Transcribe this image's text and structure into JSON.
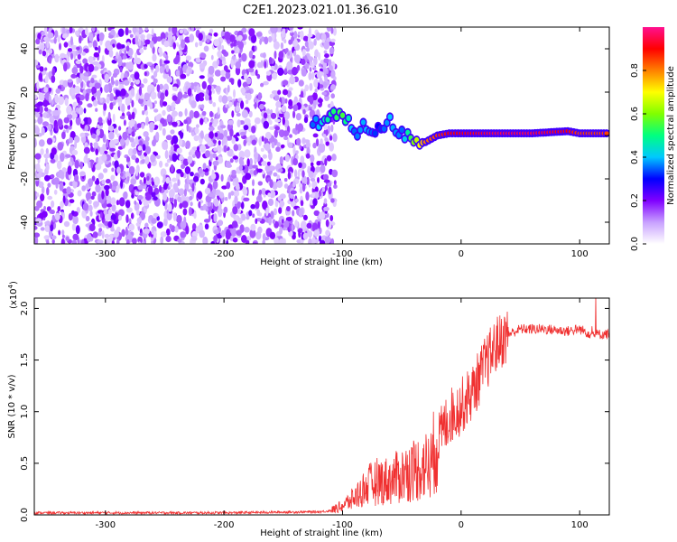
{
  "title": "C2E1.2023.021.01.36.G10",
  "chart_data": [
    {
      "type": "heatmap",
      "xlabel": "Height of straight line (km)",
      "ylabel": "Frequency (Hz)",
      "xlim": [
        -360,
        125
      ],
      "ylim": [
        -50,
        50
      ],
      "xticks": [
        -300,
        -200,
        -100,
        0,
        100
      ],
      "yticks": [
        -40,
        -20,
        0,
        20,
        40
      ],
      "colorbar": {
        "label": "Normalized spectral amplitude",
        "range": [
          0.0,
          1.0
        ],
        "ticks": [
          "0.0",
          "0.2",
          "0.4",
          "0.6",
          "0.8"
        ],
        "colors": [
          "#ffffff",
          "#c8a0ff",
          "#8000ff",
          "#0000ff",
          "#00c8ff",
          "#00ff80",
          "#80ff00",
          "#ffff00",
          "#ff8000",
          "#ff0000",
          "#ff1090"
        ]
      },
      "noise_region_x": [
        -360,
        -110
      ],
      "ridge": [
        {
          "x": -125,
          "y": 6,
          "amp": 0.35
        },
        {
          "x": -115,
          "y": 7,
          "amp": 0.45
        },
        {
          "x": -110,
          "y": 9,
          "amp": 0.5
        },
        {
          "x": -100,
          "y": 8,
          "amp": 0.55
        },
        {
          "x": -95,
          "y": 5,
          "amp": 0.45
        },
        {
          "x": -90,
          "y": 2,
          "amp": 0.35
        },
        {
          "x": -80,
          "y": 4,
          "amp": 0.4
        },
        {
          "x": -70,
          "y": 2,
          "amp": 0.3
        },
        {
          "x": -60,
          "y": 6,
          "amp": 0.4
        },
        {
          "x": -50,
          "y": 1,
          "amp": 0.35
        },
        {
          "x": -40,
          "y": -2,
          "amp": 0.6
        },
        {
          "x": -30,
          "y": -3,
          "amp": 0.8
        },
        {
          "x": -20,
          "y": 0,
          "amp": 0.85
        },
        {
          "x": -10,
          "y": 1,
          "amp": 0.9
        },
        {
          "x": 0,
          "y": 1,
          "amp": 0.9
        },
        {
          "x": 30,
          "y": 1,
          "amp": 0.95
        },
        {
          "x": 60,
          "y": 1,
          "amp": 0.95
        },
        {
          "x": 90,
          "y": 2,
          "amp": 0.9
        },
        {
          "x": 100,
          "y": 1,
          "amp": 0.85
        },
        {
          "x": 125,
          "y": 1,
          "amp": 0.85
        }
      ]
    },
    {
      "type": "line",
      "xlabel": "Height of straight line (km)",
      "ylabel": "SNR (10 * v/v)",
      "multiplier": "(x10",
      "multiplier_exp": "4",
      "multiplier_close": ")",
      "xlim": [
        -360,
        125
      ],
      "ylim": [
        0,
        2.1
      ],
      "xticks": [
        -300,
        -200,
        -100,
        0,
        100
      ],
      "yticks": [
        "0.0",
        "0.5",
        "1.0",
        "1.5",
        "2.0"
      ],
      "color": "#f03030",
      "series": [
        {
          "x": -360,
          "y": 0.02
        },
        {
          "x": -200,
          "y": 0.02
        },
        {
          "x": -120,
          "y": 0.03
        },
        {
          "x": -110,
          "y": 0.04
        },
        {
          "x": -100,
          "y": 0.08
        },
        {
          "x": -90,
          "y": 0.15
        },
        {
          "x": -80,
          "y": 0.25
        },
        {
          "x": -70,
          "y": 0.3
        },
        {
          "x": -60,
          "y": 0.3
        },
        {
          "x": -50,
          "y": 0.35
        },
        {
          "x": -40,
          "y": 0.4
        },
        {
          "x": -25,
          "y": 0.45
        },
        {
          "x": -20,
          "y": 0.7
        },
        {
          "x": -10,
          "y": 0.95
        },
        {
          "x": 0,
          "y": 1.05
        },
        {
          "x": 10,
          "y": 1.2
        },
        {
          "x": 20,
          "y": 1.45
        },
        {
          "x": 30,
          "y": 1.65
        },
        {
          "x": 40,
          "y": 1.75
        },
        {
          "x": 50,
          "y": 1.8
        },
        {
          "x": 70,
          "y": 1.8
        },
        {
          "x": 90,
          "y": 1.78
        },
        {
          "x": 100,
          "y": 1.8
        },
        {
          "x": 110,
          "y": 1.75
        },
        {
          "x": 125,
          "y": 1.75
        }
      ]
    }
  ]
}
